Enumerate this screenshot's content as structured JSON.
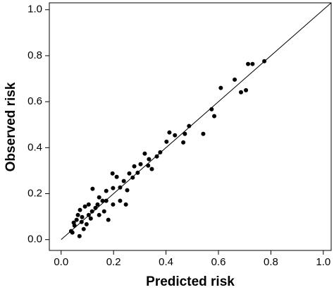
{
  "chart_data": {
    "type": "scatter",
    "x_label": "Predicted risk",
    "y_label": "Observed risk",
    "color": "#000000",
    "reference_line": "y=x",
    "xlim": [
      -0.045,
      1.03
    ],
    "ylim": [
      -0.047,
      1.03
    ],
    "xticks": [
      {
        "value": 0,
        "label": "0.0"
      },
      0.2,
      0.4,
      0.6,
      0.8,
      {
        "value": 1,
        "label": "1.0"
      }
    ],
    "yticks": [
      {
        "value": 0,
        "label": "0.0"
      },
      0.2,
      0.4,
      0.6,
      0.8,
      {
        "value": 1,
        "label": "1.0"
      }
    ],
    "x": [
      0.775,
      0.73,
      0.713,
      0.662,
      0.609,
      0.705,
      0.686,
      0.574,
      0.584,
      0.542,
      0.488,
      0.472,
      0.434,
      0.413,
      0.466,
      0.402,
      0.378,
      0.365,
      0.335,
      0.319,
      0.303,
      0.279,
      0.26,
      0.196,
      0.212,
      0.239,
      0.225,
      0.252,
      0.198,
      0.172,
      0.12,
      0.145,
      0.172,
      0.198,
      0.225,
      0.247,
      0.18,
      0.164,
      0.091,
      0.105,
      0.064,
      0.078,
      0.051,
      0.038,
      0.07,
      0.086,
      0.105,
      0.118,
      0.131,
      0.145,
      0.059,
      0.097,
      0.113,
      0.139,
      0.158,
      0.292,
      0.332,
      0.273,
      0.346,
      0.043,
      0.08,
      0.072,
      0.048
    ],
    "y": [
      0.776,
      0.764,
      0.764,
      0.696,
      0.66,
      0.65,
      0.641,
      0.567,
      0.537,
      0.46,
      0.494,
      0.46,
      0.454,
      0.466,
      0.423,
      0.426,
      0.38,
      0.362,
      0.35,
      0.374,
      0.328,
      0.319,
      0.288,
      0.288,
      0.273,
      0.255,
      0.227,
      0.215,
      0.224,
      0.212,
      0.221,
      0.184,
      0.169,
      0.153,
      0.169,
      0.153,
      0.086,
      0.123,
      0.144,
      0.153,
      0.107,
      0.077,
      0.061,
      0.037,
      0.015,
      0.046,
      0.107,
      0.123,
      0.138,
      0.107,
      0.086,
      0.067,
      0.092,
      0.153,
      0.169,
      0.291,
      0.322,
      0.27,
      0.307,
      0.031,
      0.098,
      0.129,
      0.074
    ]
  }
}
